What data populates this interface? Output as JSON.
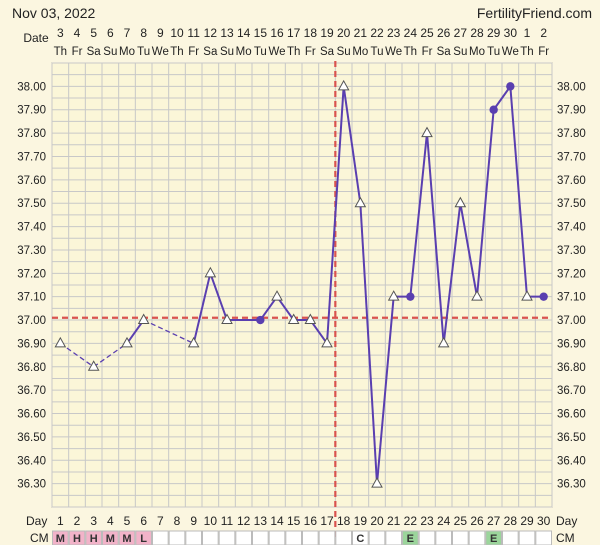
{
  "header": {
    "date": "Nov 03, 2022",
    "brand": "FertilityFriend.com"
  },
  "colors": {
    "background": "#fbf6e0",
    "plot_background": "#fbf6d8",
    "grid": "#c8c8c8",
    "line": "#5a3fb0",
    "coverline": "#d9534f",
    "ovulation_line": "#d9534f",
    "menses_cell": "#f2b3c9",
    "cm_e_cell": "#9bd59b"
  },
  "chart_data": {
    "type": "line",
    "ylim": [
      36.2,
      38.1
    ],
    "y_ticks": [
      "38.00",
      "37.90",
      "37.80",
      "37.70",
      "37.60",
      "37.50",
      "37.40",
      "37.30",
      "37.20",
      "37.10",
      "37.00",
      "36.90",
      "36.80",
      "36.70",
      "36.60",
      "36.50",
      "36.40",
      "36.30"
    ],
    "date_row_label": "Date",
    "dates": [
      "3",
      "4",
      "5",
      "6",
      "7",
      "8",
      "9",
      "10",
      "11",
      "12",
      "13",
      "14",
      "15",
      "16",
      "17",
      "18",
      "19",
      "20",
      "21",
      "22",
      "23",
      "24",
      "25",
      "26",
      "27",
      "28",
      "29",
      "30",
      "1",
      "2"
    ],
    "weekdays": [
      "Th",
      "Fr",
      "Sa",
      "Su",
      "Mo",
      "Tu",
      "We",
      "Th",
      "Fr",
      "Sa",
      "Su",
      "Mo",
      "Tu",
      "We",
      "Th",
      "Fr",
      "Sa",
      "Su",
      "Mo",
      "Tu",
      "We",
      "Th",
      "Fr",
      "Sa",
      "Su",
      "Mo",
      "Tu",
      "We",
      "Th",
      "Fr"
    ],
    "day_row_label": "Day",
    "days": [
      "1",
      "2",
      "3",
      "4",
      "5",
      "6",
      "7",
      "8",
      "9",
      "10",
      "11",
      "12",
      "13",
      "14",
      "15",
      "16",
      "17",
      "18",
      "19",
      "20",
      "21",
      "22",
      "23",
      "24",
      "25",
      "26",
      "27",
      "28",
      "29",
      "30"
    ],
    "cm_row_label": "CM",
    "cm": [
      "M",
      "H",
      "H",
      "M",
      "M",
      "L",
      "",
      "",
      "",
      "",
      "",
      "",
      "",
      "",
      "",
      "",
      "",
      "",
      "C",
      "",
      "",
      "E",
      "",
      "",
      "",
      "",
      "E",
      "",
      "",
      ""
    ],
    "coverline": 37.01,
    "ovulation_day": 17,
    "temperatures": [
      {
        "day": 1,
        "temp": 36.9,
        "marker": "open"
      },
      {
        "day": 3,
        "temp": 36.8,
        "marker": "open"
      },
      {
        "day": 5,
        "temp": 36.9,
        "marker": "open"
      },
      {
        "day": 6,
        "temp": 37.0,
        "marker": "open"
      },
      {
        "day": 9,
        "temp": 36.9,
        "marker": "open"
      },
      {
        "day": 10,
        "temp": 37.2,
        "marker": "open"
      },
      {
        "day": 11,
        "temp": 37.0,
        "marker": "open"
      },
      {
        "day": 13,
        "temp": 37.0,
        "marker": "filled"
      },
      {
        "day": 14,
        "temp": 37.1,
        "marker": "open"
      },
      {
        "day": 15,
        "temp": 37.0,
        "marker": "open"
      },
      {
        "day": 16,
        "temp": 37.0,
        "marker": "open"
      },
      {
        "day": 17,
        "temp": 36.9,
        "marker": "open"
      },
      {
        "day": 18,
        "temp": 38.0,
        "marker": "open"
      },
      {
        "day": 19,
        "temp": 37.5,
        "marker": "open"
      },
      {
        "day": 20,
        "temp": 36.3,
        "marker": "open"
      },
      {
        "day": 21,
        "temp": 37.1,
        "marker": "open"
      },
      {
        "day": 22,
        "temp": 37.1,
        "marker": "filled"
      },
      {
        "day": 23,
        "temp": 37.8,
        "marker": "open"
      },
      {
        "day": 24,
        "temp": 36.9,
        "marker": "open"
      },
      {
        "day": 25,
        "temp": 37.5,
        "marker": "open"
      },
      {
        "day": 26,
        "temp": 37.1,
        "marker": "open"
      },
      {
        "day": 27,
        "temp": 37.9,
        "marker": "filled"
      },
      {
        "day": 28,
        "temp": 38.0,
        "marker": "filled"
      },
      {
        "day": 29,
        "temp": 37.1,
        "marker": "open"
      },
      {
        "day": 30,
        "temp": 37.1,
        "marker": "filled"
      }
    ],
    "dashed_segments": [
      [
        1,
        3
      ],
      [
        3,
        5
      ],
      [
        6,
        9
      ]
    ],
    "grid": true
  }
}
